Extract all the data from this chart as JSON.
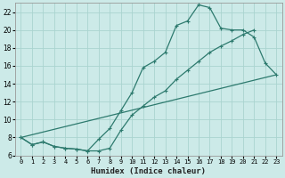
{
  "xlabel": "Humidex (Indice chaleur)",
  "background_color": "#cceae8",
  "grid_color": "#aad4d0",
  "line_color": "#2d7a6e",
  "ylim": [
    6,
    23
  ],
  "xlim": [
    -0.5,
    23.5
  ],
  "yticks": [
    6,
    8,
    10,
    12,
    14,
    16,
    18,
    20,
    22
  ],
  "xtick_labels": [
    "0",
    "1",
    "2",
    "3",
    "4",
    "5",
    "6",
    "7",
    "8",
    "9",
    "10",
    "11",
    "12",
    "13",
    "14",
    "15",
    "16",
    "17",
    "18",
    "19",
    "20",
    "21",
    "22",
    "23"
  ],
  "line1_x": [
    0,
    1,
    2,
    3,
    4,
    5,
    6,
    7,
    8,
    9,
    10,
    11,
    12,
    13,
    14,
    15,
    16,
    17,
    18,
    19,
    20,
    21,
    22,
    23
  ],
  "line1_y": [
    8.0,
    7.2,
    7.5,
    7.0,
    6.8,
    6.7,
    6.5,
    7.8,
    9.0,
    11.0,
    13.0,
    15.8,
    16.5,
    17.5,
    20.5,
    21.0,
    22.8,
    22.5,
    20.2,
    20.0,
    20.0,
    19.2,
    16.3,
    15.0
  ],
  "line2_x": [
    0,
    1,
    2,
    3,
    4,
    5,
    6,
    7,
    8,
    9,
    10,
    11,
    12,
    13,
    14,
    15,
    16,
    17,
    18,
    19,
    20,
    21
  ],
  "line2_y": [
    8.0,
    7.2,
    7.5,
    7.0,
    6.8,
    6.7,
    6.5,
    6.5,
    6.8,
    8.8,
    10.5,
    11.5,
    12.5,
    13.2,
    14.5,
    15.5,
    16.5,
    17.5,
    18.2,
    18.8,
    19.5,
    20.0
  ],
  "line3_x": [
    0,
    23
  ],
  "line3_y": [
    8.0,
    15.0
  ]
}
